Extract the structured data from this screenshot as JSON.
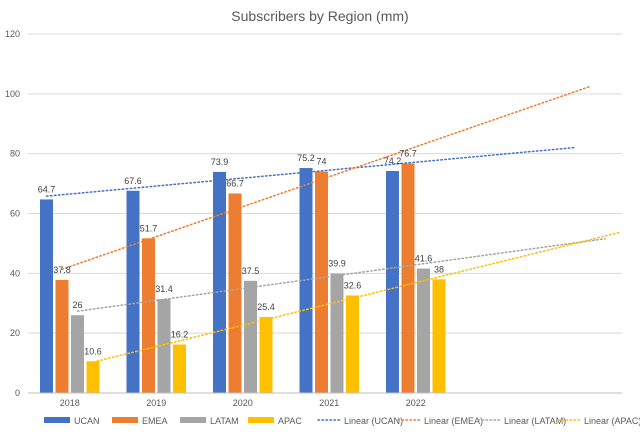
{
  "chart_data": {
    "type": "bar",
    "title": "Subscribers by Region (mm)",
    "categories": [
      "2018",
      "2019",
      "2020",
      "2021",
      "2022"
    ],
    "ylim": [
      0,
      120
    ],
    "yticks": [
      0,
      20,
      40,
      60,
      80,
      100,
      120
    ],
    "grid": true,
    "legend_position": "bottom",
    "series": [
      {
        "name": "UCAN",
        "color": "#4472c4",
        "values": [
          64.7,
          67.6,
          73.9,
          75.2,
          74.2
        ],
        "labels": [
          "64.7",
          "67.6",
          "73.9",
          "75.2",
          "74.2"
        ]
      },
      {
        "name": "EMEA",
        "color": "#ed7d31",
        "values": [
          37.8,
          51.7,
          66.7,
          74,
          76.7
        ],
        "labels": [
          "37.8",
          "51.7",
          "66.7",
          "74",
          "76.7"
        ]
      },
      {
        "name": "LATAM",
        "color": "#a5a5a5",
        "values": [
          26,
          31.4,
          37.5,
          39.9,
          41.6
        ],
        "labels": [
          "26",
          "31.4",
          "37.5",
          "39.9",
          "41.6"
        ]
      },
      {
        "name": "APAC",
        "color": "#ffc000",
        "values": [
          10.6,
          16.2,
          25.4,
          32.6,
          38
        ],
        "labels": [
          "10.6",
          "16.2",
          "25.4",
          "32.6",
          "38"
        ]
      }
    ],
    "trendlines": [
      {
        "name": "Linear (UCAN)",
        "color": "#4472c4",
        "series": "UCAN"
      },
      {
        "name": "Linear (EMEA)",
        "color": "#ed7d31",
        "series": "EMEA"
      },
      {
        "name": "Linear (LATAM)",
        "color": "#a5a5a5",
        "series": "LATAM"
      },
      {
        "name": "Linear (APAC)",
        "color": "#ffc000",
        "series": "APAC"
      }
    ]
  }
}
